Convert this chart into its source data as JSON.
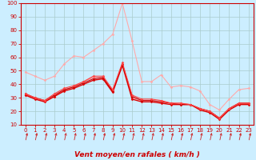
{
  "title": "",
  "xlabel": "Vent moyen/en rafales ( km/h )",
  "ylabel": "",
  "background_color": "#cceeff",
  "grid_color": "#aacccc",
  "xlim": [
    -0.5,
    23.5
  ],
  "ylim": [
    10,
    100
  ],
  "yticks": [
    10,
    20,
    30,
    40,
    50,
    60,
    70,
    80,
    90,
    100
  ],
  "xticks": [
    0,
    1,
    2,
    3,
    4,
    5,
    6,
    7,
    8,
    9,
    10,
    11,
    12,
    13,
    14,
    15,
    16,
    17,
    18,
    19,
    20,
    21,
    22,
    23
  ],
  "series": [
    {
      "color": "#ffaaaa",
      "lw": 0.8,
      "marker": "D",
      "ms": 1.5,
      "data_x": [
        0,
        1,
        2,
        3,
        4,
        5,
        6,
        7,
        8,
        9,
        10,
        11,
        12,
        13,
        14,
        15,
        16,
        17,
        18,
        19,
        20,
        21,
        22,
        23
      ],
      "data_y": [
        49,
        46,
        43,
        46,
        55,
        61,
        60,
        65,
        70,
        77,
        100,
        72,
        42,
        42,
        47,
        38,
        39,
        38,
        35,
        25,
        21,
        29,
        36,
        37
      ]
    },
    {
      "color": "#ff8888",
      "lw": 0.8,
      "marker": "D",
      "ms": 1.5,
      "data_x": [
        0,
        1,
        2,
        3,
        4,
        5,
        6,
        7,
        8,
        9,
        10,
        11,
        12,
        13,
        14,
        15,
        16,
        17,
        18,
        19,
        20,
        21,
        22,
        23
      ],
      "data_y": [
        32,
        30,
        27,
        31,
        36,
        38,
        42,
        45,
        45,
        35,
        55,
        30,
        28,
        28,
        27,
        26,
        26,
        25,
        22,
        20,
        15,
        22,
        26,
        26
      ]
    },
    {
      "color": "#dd0000",
      "lw": 1.0,
      "marker": "D",
      "ms": 1.5,
      "data_x": [
        0,
        1,
        2,
        3,
        4,
        5,
        6,
        7,
        8,
        9,
        10,
        11,
        12,
        13,
        14,
        15,
        16,
        17,
        18,
        19,
        20,
        21,
        22,
        23
      ],
      "data_y": [
        32,
        29,
        27,
        31,
        35,
        37,
        40,
        43,
        44,
        34,
        54,
        29,
        27,
        27,
        26,
        25,
        25,
        25,
        21,
        19,
        14,
        21,
        25,
        25
      ]
    },
    {
      "color": "#cc0000",
      "lw": 0.8,
      "marker": "D",
      "ms": 1.2,
      "data_x": [
        0,
        1,
        2,
        3,
        4,
        5,
        6,
        7,
        8,
        9,
        10,
        11,
        12,
        13,
        14,
        15,
        16,
        17,
        18,
        19,
        20,
        21,
        22,
        23
      ],
      "data_y": [
        33,
        30,
        28,
        32,
        36,
        38,
        41,
        44,
        45,
        35,
        55,
        31,
        28,
        28,
        27,
        26,
        25,
        25,
        22,
        20,
        15,
        22,
        26,
        26
      ]
    },
    {
      "color": "#ff4444",
      "lw": 0.8,
      "marker": "D",
      "ms": 1.5,
      "data_x": [
        0,
        1,
        2,
        3,
        4,
        5,
        6,
        7,
        8,
        9,
        10,
        11,
        12,
        13,
        14,
        15,
        16,
        17,
        18,
        19,
        20,
        21,
        22,
        23
      ],
      "data_y": [
        33,
        30,
        28,
        33,
        37,
        39,
        42,
        46,
        46,
        36,
        56,
        32,
        29,
        29,
        28,
        26,
        26,
        25,
        22,
        20,
        15,
        22,
        26,
        26
      ]
    }
  ],
  "arrow_color": "#cc2222",
  "axis_label_color": "#cc0000",
  "tick_fontsize": 5,
  "xlabel_fontsize": 6.5
}
